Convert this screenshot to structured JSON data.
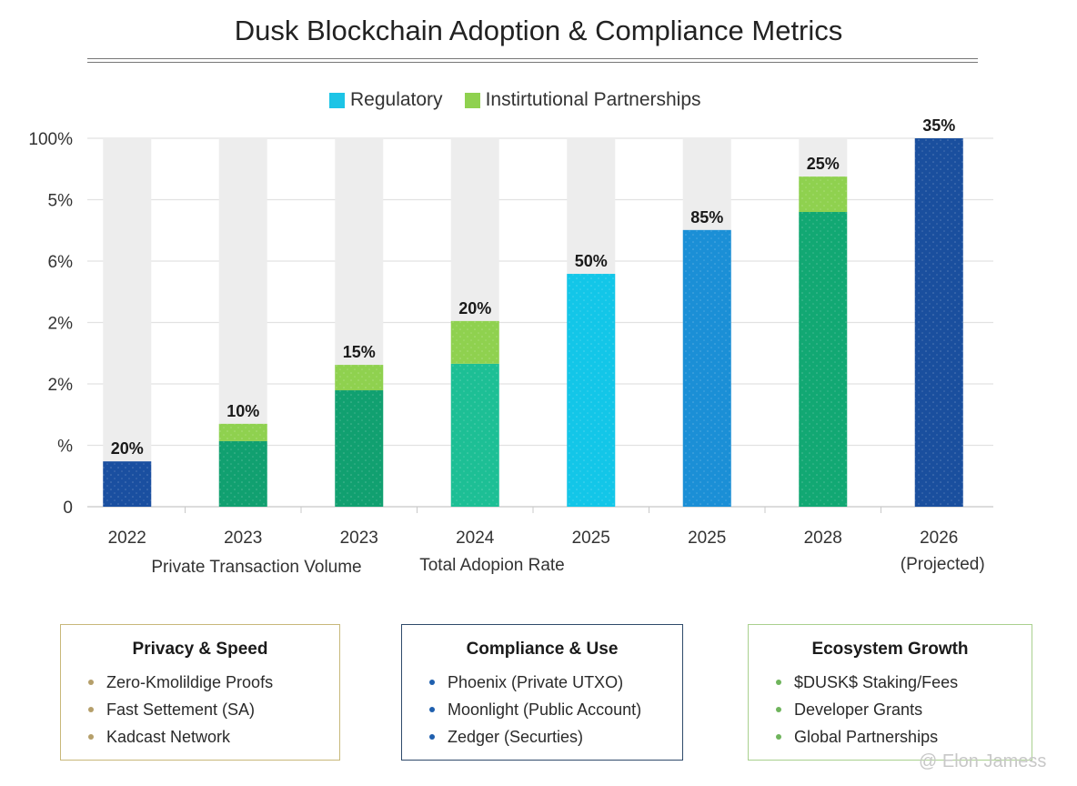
{
  "title": "Dusk Blockchain Adoption & Compliance Metrics",
  "legend": [
    {
      "label": "Regulatory",
      "color": "#1cc4e6"
    },
    {
      "label": "Instirtutional Partnerships",
      "color": "#8fd14f"
    }
  ],
  "chart_data": {
    "type": "bar",
    "stacked": true,
    "title": "Dusk Blockchain Adoption & Compliance Metrics",
    "ylim": [
      0,
      100
    ],
    "y_tick_labels": [
      "0",
      "%",
      "2%",
      "2%",
      "6%",
      "5%",
      "100%"
    ],
    "grid": true,
    "legend_position": "top",
    "categories": [
      "2022",
      "2023",
      "2023",
      "2024",
      "2025",
      "2025",
      "2028",
      "2026"
    ],
    "category_sublabels": [
      "",
      "",
      "",
      "",
      "",
      "",
      "",
      "(Projected)"
    ],
    "axis_captions": [
      "Private Transaction Volume",
      "Total Adopion Rate"
    ],
    "bars": [
      {
        "base": 12.3,
        "base_color": "#1a4fa0",
        "top": 0,
        "label": "20%"
      },
      {
        "base": 17.8,
        "base_color": "#11a070",
        "top": 4.7,
        "label": "10%"
      },
      {
        "base": 31.6,
        "base_color": "#11a070",
        "top": 6.9,
        "label": "15%"
      },
      {
        "base": 38.8,
        "base_color": "#1dbf95",
        "top": 11.6,
        "label": "20%"
      },
      {
        "base": 63.2,
        "base_color": "#13c6e8",
        "top": 0,
        "label": "50%"
      },
      {
        "base": 75.1,
        "base_color": "#1b8fd6",
        "top": 0,
        "label": "85%"
      },
      {
        "base": 80.0,
        "base_color": "#12a873",
        "top": 9.6,
        "label": "25%"
      },
      {
        "base": 100,
        "base_color": "#1a4f9e",
        "top": 0,
        "label": "35%"
      }
    ],
    "top_color": "#8fd14f",
    "track_color": "#ededed"
  },
  "boxes": [
    {
      "title": "Privacy & Speed",
      "border": "#c8b87a",
      "bullet": "#b59f6a",
      "items": [
        "Zero-Kmolildige Proofs",
        "Fast Settement (SA)",
        "Kadcast Network"
      ]
    },
    {
      "title": "Compliance & Use",
      "border": "#2f4a6a",
      "bullet": "#1f5fae",
      "items": [
        "Phoenix (Private UTXO)",
        "Moonlight (Public Account)",
        "Zedger (Securties)"
      ]
    },
    {
      "title": "Ecosystem Growth",
      "border": "#a9d08e",
      "bullet": "#6fb45c",
      "items": [
        "$DUSK$ Staking/Fees",
        "Developer Grants",
        "Global Partnerships"
      ]
    }
  ],
  "watermark": "@ Elon Jamess"
}
